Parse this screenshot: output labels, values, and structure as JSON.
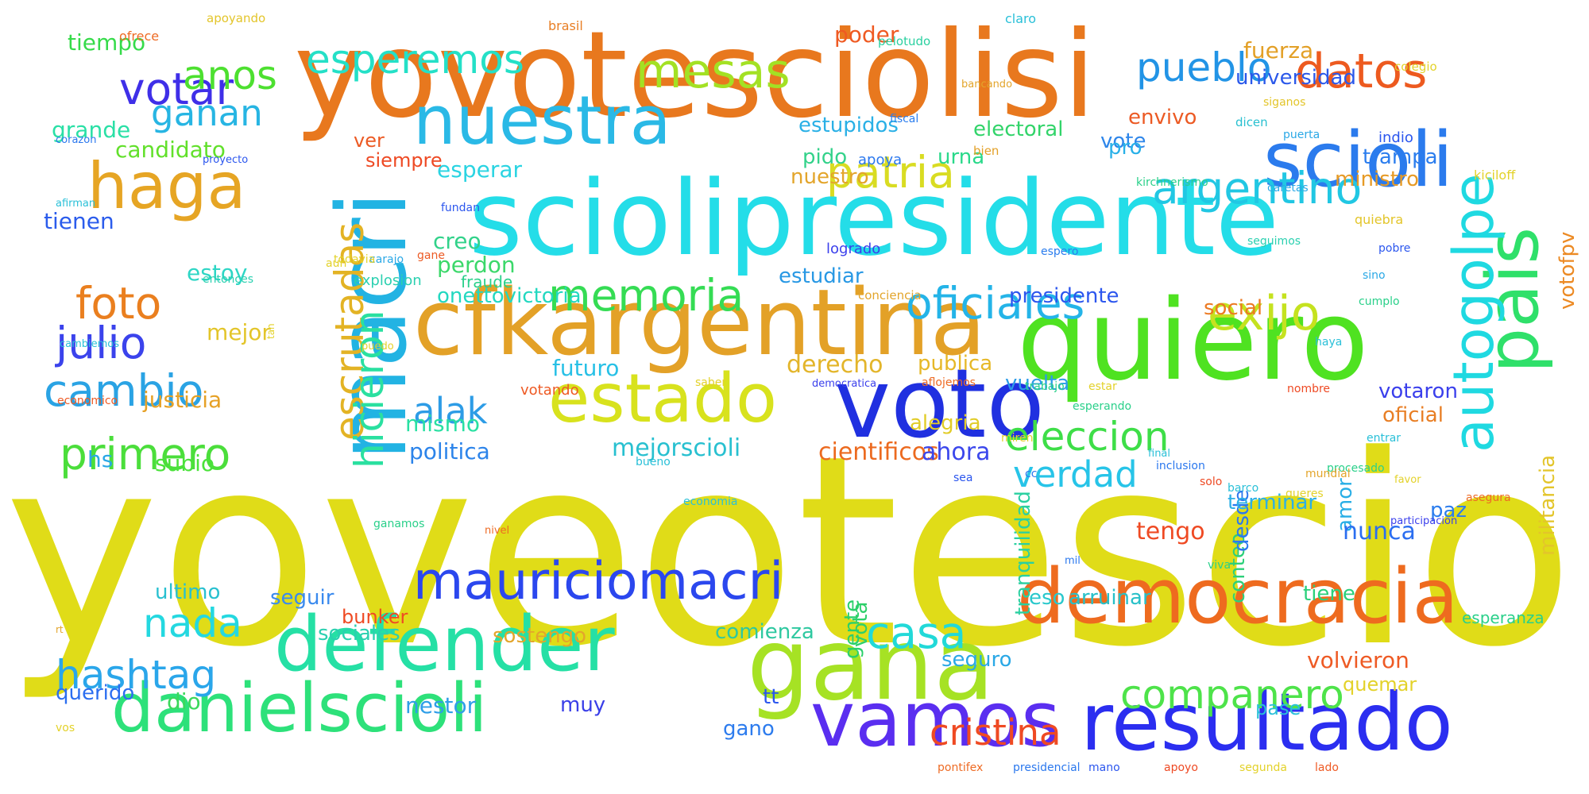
{
  "cloud": {
    "words": [
      {
        "text": "yoveotescioli",
        "color": "#e0dc18"
      },
      {
        "text": "yovotesciolisi",
        "color": "#e8781e"
      },
      {
        "text": "sciolipresidente",
        "color": "#24dde8"
      },
      {
        "text": "quiero",
        "color": "#4fe221"
      },
      {
        "text": "cfkargentina",
        "color": "#e3a127"
      },
      {
        "text": "macri",
        "color": "#22b3e3"
      },
      {
        "text": "voto",
        "color": "#2030e0"
      },
      {
        "text": "gana",
        "color": "#a6e224"
      },
      {
        "text": "resultado",
        "color": "#2b2ef0"
      },
      {
        "text": "democracia",
        "color": "#ee6b1f"
      },
      {
        "text": "danielscioli",
        "color": "#2de17a"
      },
      {
        "text": "defender",
        "color": "#25e0a5"
      },
      {
        "text": "vamos",
        "color": "#5a2ef0"
      },
      {
        "text": "scioli",
        "color": "#2b7bed"
      },
      {
        "text": "nuestra",
        "color": "#2ab9e6"
      },
      {
        "text": "estado",
        "color": "#d8e21d"
      },
      {
        "text": "haga",
        "color": "#e6a524"
      },
      {
        "text": "pais",
        "color": "#2fe06a"
      },
      {
        "text": "autogolpe",
        "color": "#1fd9e1"
      },
      {
        "text": "mauriciomacri",
        "color": "#2b47ee"
      },
      {
        "text": "datos",
        "color": "#ed5a1f"
      },
      {
        "text": "pueblo",
        "color": "#2294e6"
      },
      {
        "text": "mesas",
        "color": "#a3e124"
      },
      {
        "text": "esperemos",
        "color": "#24e0c7"
      },
      {
        "text": "votar",
        "color": "#3f2fe8"
      },
      {
        "text": "ganan",
        "color": "#27b5e3"
      },
      {
        "text": "anos",
        "color": "#4de030"
      },
      {
        "text": "patria",
        "color": "#d9dc22"
      },
      {
        "text": "argentino",
        "color": "#21c7e3"
      },
      {
        "text": "exijo",
        "color": "#c5e21f"
      },
      {
        "text": "oficiales",
        "color": "#24b4e8"
      },
      {
        "text": "memoria",
        "color": "#35dc54"
      },
      {
        "text": "foto",
        "color": "#ea7f1f"
      },
      {
        "text": "julio",
        "color": "#3b43ec"
      },
      {
        "text": "cambio",
        "color": "#2aa3e4"
      },
      {
        "text": "primero",
        "color": "#4bde3b"
      },
      {
        "text": "nada",
        "color": "#24d8e0"
      },
      {
        "text": "hashtag",
        "color": "#2aa6ea"
      },
      {
        "text": "escrutadas",
        "color": "#e3b324"
      },
      {
        "text": "hicieron",
        "color": "#2ae0a0"
      },
      {
        "text": "alak",
        "color": "#2d9ce6"
      },
      {
        "text": "eleccion",
        "color": "#3ede48"
      },
      {
        "text": "verdad",
        "color": "#27c4e8"
      },
      {
        "text": "casa",
        "color": "#22d9d8"
      },
      {
        "text": "companero",
        "color": "#4ee34a"
      },
      {
        "text": "cristina",
        "color": "#ef4a23"
      },
      {
        "text": "candidato",
        "color": "#62e02b"
      },
      {
        "text": "tiempo",
        "color": "#36db4a"
      },
      {
        "text": "grande",
        "color": "#2ae0a6"
      },
      {
        "text": "tienen",
        "color": "#2b5cec"
      },
      {
        "text": "estoy",
        "color": "#2ed6c5"
      },
      {
        "text": "mejor",
        "color": "#e3c52a"
      },
      {
        "text": "justicia",
        "color": "#e6a126"
      },
      {
        "text": "subio",
        "color": "#4ae23a"
      },
      {
        "text": "hs",
        "color": "#2aa7e6"
      },
      {
        "text": "dio",
        "color": "#3bd85b"
      },
      {
        "text": "querido",
        "color": "#2b6ef0"
      },
      {
        "text": "nestor",
        "color": "#2f9ee8"
      },
      {
        "text": "muy",
        "color": "#3a3fe8"
      },
      {
        "text": "futuro",
        "color": "#27c0e6"
      },
      {
        "text": "perdon",
        "color": "#3bd86a"
      },
      {
        "text": "creo",
        "color": "#31d28a"
      },
      {
        "text": "mismo",
        "color": "#29e0a2"
      },
      {
        "text": "politica",
        "color": "#2c84ea"
      },
      {
        "text": "mejorscioli",
        "color": "#28c0d0"
      },
      {
        "text": "derecho",
        "color": "#e3b52a"
      },
      {
        "text": "cientificos",
        "color": "#ec6a1f"
      },
      {
        "text": "ahora",
        "color": "#3b47ec"
      },
      {
        "text": "alegria",
        "color": "#e1cc28"
      },
      {
        "text": "publica",
        "color": "#e6b827"
      },
      {
        "text": "presidente",
        "color": "#2c56ee"
      },
      {
        "text": "estudiar",
        "color": "#2898e4"
      },
      {
        "text": "onettovictoria",
        "color": "#22d8c0"
      },
      {
        "text": "vuelta",
        "color": "#2c9ce8"
      },
      {
        "text": "nuestro",
        "color": "#e3a52b"
      },
      {
        "text": "urna",
        "color": "#2ad98a"
      },
      {
        "text": "pido",
        "color": "#33d28a"
      },
      {
        "text": "esperar",
        "color": "#2ad4e2"
      },
      {
        "text": "estupidos",
        "color": "#2ab0e6"
      },
      {
        "text": "electoral",
        "color": "#32d46a"
      },
      {
        "text": "vote",
        "color": "#2e86ea"
      },
      {
        "text": "envivo",
        "color": "#ec5a24"
      },
      {
        "text": "universidad",
        "color": "#2b58ea"
      },
      {
        "text": "fuerza",
        "color": "#e3a027"
      },
      {
        "text": "poder",
        "color": "#ef5a22"
      },
      {
        "text": "pro",
        "color": "#28b0e8"
      },
      {
        "text": "ministro",
        "color": "#e69a26"
      },
      {
        "text": "trampa",
        "color": "#2b7dee"
      },
      {
        "text": "social",
        "color": "#ec7a22"
      },
      {
        "text": "votaron",
        "color": "#3a3fec"
      },
      {
        "text": "oficial",
        "color": "#e87e24"
      },
      {
        "text": "votofpv",
        "color": "#ec8a24"
      },
      {
        "text": "militancia",
        "color": "#e3c52a"
      },
      {
        "text": "tengo",
        "color": "#ef4a23"
      },
      {
        "text": "amor",
        "color": "#28aee6"
      },
      {
        "text": "conteo",
        "color": "#2cd07a"
      },
      {
        "text": "desde",
        "color": "#2b78ee"
      },
      {
        "text": "nunca",
        "color": "#2b6ef0"
      },
      {
        "text": "paz",
        "color": "#2b7dee"
      },
      {
        "text": "terminar",
        "color": "#2cb0e6"
      },
      {
        "text": "tranquilidad",
        "color": "#2ad0a0"
      },
      {
        "text": "vota",
        "color": "#2ed06a"
      },
      {
        "text": "ultimo",
        "color": "#28c0d0"
      },
      {
        "text": "seguir",
        "color": "#3a8aee"
      },
      {
        "text": "eso",
        "color": "#2ac8cc"
      },
      {
        "text": "arruinar",
        "color": "#27c0c8"
      },
      {
        "text": "tiene",
        "color": "#2ad07a"
      },
      {
        "text": "sociales",
        "color": "#2ad0b0"
      },
      {
        "text": "sostengo",
        "color": "#e3a52b"
      },
      {
        "text": "comienza",
        "color": "#2ec8a0"
      },
      {
        "text": "gente",
        "color": "#2ad06a"
      },
      {
        "text": "seguro",
        "color": "#2aa8e6"
      },
      {
        "text": "volvieron",
        "color": "#ee5a24"
      },
      {
        "text": "quemar",
        "color": "#e3d22a"
      },
      {
        "text": "pase",
        "color": "#2ac0d8"
      },
      {
        "text": "tt",
        "color": "#2b56ee"
      },
      {
        "text": "gano",
        "color": "#2d7cee"
      },
      {
        "text": "bunker",
        "color": "#ef4a23"
      },
      {
        "text": "ver",
        "color": "#ec5a24"
      },
      {
        "text": "siempre",
        "color": "#ee4a24"
      },
      {
        "text": "esperanza",
        "color": "#2ad08a"
      },
      {
        "text": "ofrece",
        "color": "#ee6b24"
      },
      {
        "text": "apoyando",
        "color": "#e3c52a"
      },
      {
        "text": "brasil",
        "color": "#e87e24"
      },
      {
        "text": "claro",
        "color": "#2ac0d8"
      },
      {
        "text": "pelotudo",
        "color": "#2ad0a0"
      },
      {
        "text": "colegio",
        "color": "#e3d22a"
      },
      {
        "text": "dicen",
        "color": "#28c0d0"
      },
      {
        "text": "bien",
        "color": "#e3a027"
      },
      {
        "text": "fiscal",
        "color": "#2b7dee"
      },
      {
        "text": "siganos",
        "color": "#e3c52a"
      },
      {
        "text": "puerta",
        "color": "#2aa8e6"
      },
      {
        "text": "indio",
        "color": "#2b56ee"
      },
      {
        "text": "kirchnerismo",
        "color": "#2ad08a"
      },
      {
        "text": "caretas",
        "color": "#2aa8e6"
      },
      {
        "text": "kiciloff",
        "color": "#e3d22a"
      },
      {
        "text": "apoya",
        "color": "#2b78ee"
      },
      {
        "text": "fundan",
        "color": "#2b56ee"
      },
      {
        "text": "logrado",
        "color": "#3a3fec"
      },
      {
        "text": "espero",
        "color": "#2b7dee"
      },
      {
        "text": "seguimos",
        "color": "#2ad0b0"
      },
      {
        "text": "sino",
        "color": "#2aa8e6"
      },
      {
        "text": "pobre",
        "color": "#2b56ee"
      },
      {
        "text": "quiebra",
        "color": "#e3c52a"
      },
      {
        "text": "gane",
        "color": "#ec5a24"
      },
      {
        "text": "carajo",
        "color": "#2aa8e6"
      },
      {
        "text": "todavia",
        "color": "#e3d22a"
      },
      {
        "text": "aun",
        "color": "#e3d22a"
      },
      {
        "text": "explosion",
        "color": "#2ad0b0"
      },
      {
        "text": "fraude",
        "color": "#2ad08a"
      },
      {
        "text": "conciencia",
        "color": "#e3a52b"
      },
      {
        "text": "cumplo",
        "color": "#2ad08a"
      },
      {
        "text": "entonces",
        "color": "#2ad0b0"
      },
      {
        "text": "cambiemos",
        "color": "#2ac0d8"
      },
      {
        "text": "tan",
        "color": "#e3d22a"
      },
      {
        "text": "puedo",
        "color": "#e3d22a"
      },
      {
        "text": "haya",
        "color": "#2ac0d8"
      },
      {
        "text": "economico",
        "color": "#ee5a24"
      },
      {
        "text": "saber",
        "color": "#e3d22a"
      },
      {
        "text": "democratica",
        "color": "#3a3fec"
      },
      {
        "text": "aflojemos",
        "color": "#ee6b24"
      },
      {
        "text": "trabajo",
        "color": "#2ad08a"
      },
      {
        "text": "estar",
        "color": "#e3d22a"
      },
      {
        "text": "nombre",
        "color": "#ee4a24"
      },
      {
        "text": "votando",
        "color": "#ee5a24"
      },
      {
        "text": "esperando",
        "color": "#2ad08a"
      },
      {
        "text": "miren",
        "color": "#e3d22a"
      },
      {
        "text": "final",
        "color": "#2ac0d8"
      },
      {
        "text": "sea",
        "color": "#2b56ee"
      },
      {
        "text": "inclusion",
        "color": "#2b78ee"
      },
      {
        "text": "queres",
        "color": "#e3d22a"
      },
      {
        "text": "barco",
        "color": "#2ac0d8"
      },
      {
        "text": "procesado",
        "color": "#2ad08a"
      },
      {
        "text": "favor",
        "color": "#e3d22a"
      },
      {
        "text": "economia",
        "color": "#2ac0d8"
      },
      {
        "text": "entrar",
        "color": "#2ac0d8"
      },
      {
        "text": "mundial",
        "color": "#e3a52b"
      },
      {
        "text": "solo",
        "color": "#ee4a24"
      },
      {
        "text": "cc",
        "color": "#2b78ee"
      },
      {
        "text": "bueno",
        "color": "#2ac0d8"
      },
      {
        "text": "asegura",
        "color": "#ee6b24"
      },
      {
        "text": "ganamos",
        "color": "#2ad08a"
      },
      {
        "text": "participacion",
        "color": "#3a3fec"
      },
      {
        "text": "nivel",
        "color": "#ee6b24"
      },
      {
        "text": "mil",
        "color": "#2b78ee"
      },
      {
        "text": "viva",
        "color": "#2ad08a"
      },
      {
        "text": "rt",
        "color": "#e3a52b"
      },
      {
        "text": "vos",
        "color": "#e3d22a"
      },
      {
        "text": "corazon",
        "color": "#2b78ee"
      },
      {
        "text": "afirman",
        "color": "#2ac0d8"
      },
      {
        "text": "proyecto",
        "color": "#2b56ee"
      },
      {
        "text": "bancando",
        "color": "#e3a52b"
      },
      {
        "text": "pontifex",
        "color": "#ee6b24"
      },
      {
        "text": "presidencial",
        "color": "#2b78ee"
      },
      {
        "text": "mano",
        "color": "#2b56ee"
      },
      {
        "text": "apoyo",
        "color": "#ee4a24"
      },
      {
        "text": "segunda",
        "color": "#e3d22a"
      },
      {
        "text": "lado",
        "color": "#ee5a24"
      }
    ]
  }
}
